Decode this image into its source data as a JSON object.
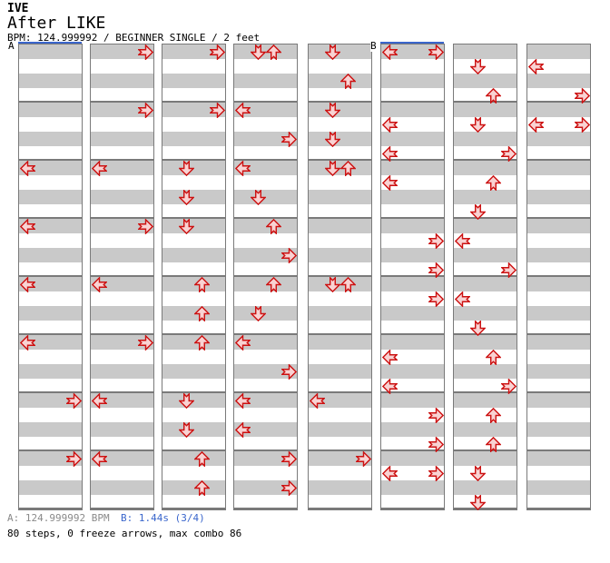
{
  "header": {
    "artist": "IVE",
    "title": "After LIKE",
    "info": "BPM: 124.999992 / BEGINNER SINGLE / 2 feet"
  },
  "footer": {
    "marker_a": "A: 124.999992 BPM",
    "marker_b": "B: 1.44s (3/4)",
    "summary": "80 steps, 0 freeze arrows, max combo 86"
  },
  "chart": {
    "beats_per_measure": 4,
    "measures_per_column": 8,
    "total_columns": 8,
    "sections": [
      {
        "label": "A",
        "column": 0
      },
      {
        "label": "B",
        "column": 5
      }
    ],
    "columns": [
      {
        "notes": [
          {
            "beat": 8,
            "dir": "L"
          },
          {
            "beat": 12,
            "dir": "L"
          },
          {
            "beat": 16,
            "dir": "L"
          },
          {
            "beat": 20,
            "dir": "L"
          },
          {
            "beat": 24,
            "dir": "R"
          },
          {
            "beat": 28,
            "dir": "R"
          }
        ]
      },
      {
        "notes": [
          {
            "beat": 0,
            "dir": "R"
          },
          {
            "beat": 4,
            "dir": "R"
          },
          {
            "beat": 8,
            "dir": "L"
          },
          {
            "beat": 12,
            "dir": "R"
          },
          {
            "beat": 16,
            "dir": "L"
          },
          {
            "beat": 20,
            "dir": "R"
          },
          {
            "beat": 24,
            "dir": "L"
          },
          {
            "beat": 28,
            "dir": "L"
          }
        ]
      },
      {
        "notes": [
          {
            "beat": 0,
            "dir": "R"
          },
          {
            "beat": 4,
            "dir": "R"
          },
          {
            "beat": 8,
            "dir": "D"
          },
          {
            "beat": 10,
            "dir": "D"
          },
          {
            "beat": 12,
            "dir": "D"
          },
          {
            "beat": 16,
            "dir": "U"
          },
          {
            "beat": 18,
            "dir": "U"
          },
          {
            "beat": 20,
            "dir": "U"
          },
          {
            "beat": 24,
            "dir": "D"
          },
          {
            "beat": 26,
            "dir": "D"
          },
          {
            "beat": 28,
            "dir": "U"
          },
          {
            "beat": 30,
            "dir": "U"
          }
        ]
      },
      {
        "notes": [
          {
            "beat": 0,
            "dir": "D"
          },
          {
            "beat": 0,
            "dir": "U"
          },
          {
            "beat": 4,
            "dir": "L"
          },
          {
            "beat": 6,
            "dir": "R"
          },
          {
            "beat": 8,
            "dir": "L"
          },
          {
            "beat": 10,
            "dir": "D"
          },
          {
            "beat": 12,
            "dir": "U"
          },
          {
            "beat": 14,
            "dir": "R"
          },
          {
            "beat": 16,
            "dir": "U"
          },
          {
            "beat": 18,
            "dir": "D"
          },
          {
            "beat": 20,
            "dir": "L"
          },
          {
            "beat": 22,
            "dir": "R"
          },
          {
            "beat": 24,
            "dir": "L"
          },
          {
            "beat": 26,
            "dir": "L"
          },
          {
            "beat": 28,
            "dir": "R"
          },
          {
            "beat": 30,
            "dir": "R"
          }
        ]
      },
      {
        "notes": [
          {
            "beat": 0,
            "dir": "D"
          },
          {
            "beat": 2,
            "dir": "U"
          },
          {
            "beat": 4,
            "dir": "D"
          },
          {
            "beat": 6,
            "dir": "D"
          },
          {
            "beat": 8,
            "dir": "D"
          },
          {
            "beat": 8,
            "dir": "U"
          },
          {
            "beat": 16,
            "dir": "D"
          },
          {
            "beat": 16,
            "dir": "U"
          },
          {
            "beat": 24,
            "dir": "L"
          },
          {
            "beat": 28,
            "dir": "R"
          }
        ]
      },
      {
        "notes": [
          {
            "beat": 0,
            "dir": "L"
          },
          {
            "beat": 0,
            "dir": "R"
          },
          {
            "beat": 5,
            "dir": "L"
          },
          {
            "beat": 7,
            "dir": "L"
          },
          {
            "beat": 9,
            "dir": "L"
          },
          {
            "beat": 13,
            "dir": "R"
          },
          {
            "beat": 15,
            "dir": "R"
          },
          {
            "beat": 17,
            "dir": "R"
          },
          {
            "beat": 21,
            "dir": "L"
          },
          {
            "beat": 23,
            "dir": "L"
          },
          {
            "beat": 25,
            "dir": "R"
          },
          {
            "beat": 27,
            "dir": "R"
          },
          {
            "beat": 29,
            "dir": "L"
          },
          {
            "beat": 29,
            "dir": "R"
          }
        ]
      },
      {
        "notes": [
          {
            "beat": 1,
            "dir": "D"
          },
          {
            "beat": 3,
            "dir": "U"
          },
          {
            "beat": 5,
            "dir": "D"
          },
          {
            "beat": 7,
            "dir": "R"
          },
          {
            "beat": 9,
            "dir": "U"
          },
          {
            "beat": 11,
            "dir": "D"
          },
          {
            "beat": 13,
            "dir": "L"
          },
          {
            "beat": 15,
            "dir": "R"
          },
          {
            "beat": 17,
            "dir": "L"
          },
          {
            "beat": 19,
            "dir": "D"
          },
          {
            "beat": 21,
            "dir": "U"
          },
          {
            "beat": 23,
            "dir": "R"
          },
          {
            "beat": 25,
            "dir": "U"
          },
          {
            "beat": 27,
            "dir": "U"
          },
          {
            "beat": 29,
            "dir": "D"
          },
          {
            "beat": 31,
            "dir": "D"
          }
        ]
      },
      {
        "notes": [
          {
            "beat": 1,
            "dir": "L"
          },
          {
            "beat": 3,
            "dir": "R"
          },
          {
            "beat": 5,
            "dir": "L"
          },
          {
            "beat": 5,
            "dir": "R"
          }
        ]
      }
    ]
  },
  "colors": {
    "arrow_outline": "#cc1111",
    "arrow_fill": "#f9d3d3",
    "marker_blue": "#3a66cc",
    "stripe_gray": "#c9c9c9",
    "grid_gray": "#7a7a7a",
    "footer_gray": "#8a8a8a"
  }
}
